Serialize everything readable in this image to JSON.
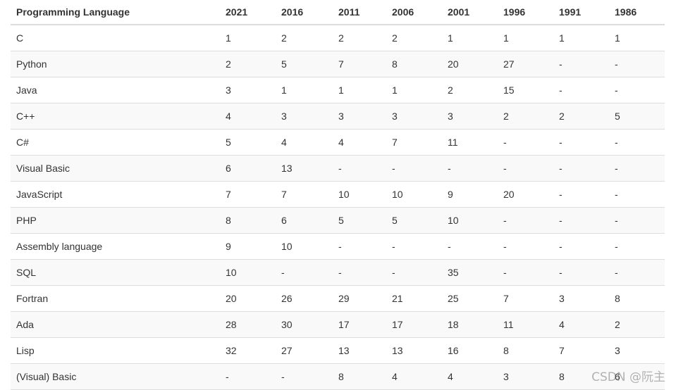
{
  "table": {
    "headers": [
      "Programming Language",
      "2021",
      "2016",
      "2011",
      "2006",
      "2001",
      "1996",
      "1991",
      "1986"
    ],
    "rows": [
      [
        "C",
        "1",
        "2",
        "2",
        "2",
        "1",
        "1",
        "1",
        "1"
      ],
      [
        "Python",
        "2",
        "5",
        "7",
        "8",
        "20",
        "27",
        "-",
        "-"
      ],
      [
        "Java",
        "3",
        "1",
        "1",
        "1",
        "2",
        "15",
        "-",
        "-"
      ],
      [
        "C++",
        "4",
        "3",
        "3",
        "3",
        "3",
        "2",
        "2",
        "5"
      ],
      [
        "C#",
        "5",
        "4",
        "4",
        "7",
        "11",
        "-",
        "-",
        "-"
      ],
      [
        "Visual Basic",
        "6",
        "13",
        "-",
        "-",
        "-",
        "-",
        "-",
        "-"
      ],
      [
        "JavaScript",
        "7",
        "7",
        "10",
        "10",
        "9",
        "20",
        "-",
        "-"
      ],
      [
        "PHP",
        "8",
        "6",
        "5",
        "5",
        "10",
        "-",
        "-",
        "-"
      ],
      [
        "Assembly language",
        "9",
        "10",
        "-",
        "-",
        "-",
        "-",
        "-",
        "-"
      ],
      [
        "SQL",
        "10",
        "-",
        "-",
        "-",
        "35",
        "-",
        "-",
        "-"
      ],
      [
        "Fortran",
        "20",
        "26",
        "29",
        "21",
        "25",
        "7",
        "3",
        "8"
      ],
      [
        "Ada",
        "28",
        "30",
        "17",
        "17",
        "18",
        "11",
        "4",
        "2"
      ],
      [
        "Lisp",
        "32",
        "27",
        "13",
        "13",
        "16",
        "8",
        "7",
        "3"
      ],
      [
        "(Visual) Basic",
        "-",
        "-",
        "8",
        "4",
        "4",
        "3",
        "8",
        "6"
      ]
    ]
  },
  "watermark": "CSDN @阮主",
  "colors": {
    "text": "#333333",
    "border": "#dddddd",
    "stripe": "#f9f9f9"
  }
}
